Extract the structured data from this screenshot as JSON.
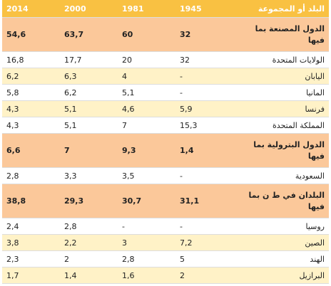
{
  "header": {
    "name": "البلد أو المجموعة",
    "y1945": "1945",
    "y1981": "1981",
    "y2000": "2000",
    "y2014": "2014"
  },
  "rows": [
    {
      "type": "group",
      "name": "الدول المصنعة بما فيها",
      "v1945": "32",
      "v1981": "60",
      "v2000": "63,7",
      "v2014": "54,6"
    },
    {
      "type": "plain",
      "name": "الولايات المتحدة",
      "v1945": "32",
      "v1981": "20",
      "v2000": "17,7",
      "v2014": "16,8"
    },
    {
      "type": "alt",
      "name": "اليابان",
      "v1945": "-",
      "v1981": "4",
      "v2000": "6,3",
      "v2014": "6,2"
    },
    {
      "type": "plain",
      "name": "المانيا",
      "v1945": "-",
      "v1981": "5,1",
      "v2000": "6,2",
      "v2014": "5,8"
    },
    {
      "type": "alt",
      "name": "فرنسا",
      "v1945": "5,9",
      "v1981": "4,6",
      "v2000": "5,1",
      "v2014": "4,3"
    },
    {
      "type": "plain",
      "name": "المملكة المتحدة",
      "v1945": "15,3",
      "v1981": "7",
      "v2000": "5,1",
      "v2014": "4,3"
    },
    {
      "type": "group",
      "name": "الدول البترولية بما فيها",
      "v1945": "1,4",
      "v1981": "9,3",
      "v2000": "7",
      "v2014": "6,6"
    },
    {
      "type": "plain",
      "name": "السعودية",
      "v1945": "-",
      "v1981": "3,5",
      "v2000": "3,3",
      "v2014": "2,8"
    },
    {
      "type": "group",
      "name": "البلدان في ط ن بما فيها",
      "v1945": "31,1",
      "v1981": "30,7",
      "v2000": "29,3",
      "v2014": "38,8"
    },
    {
      "type": "plain",
      "name": "روسيا",
      "v1945": "-",
      "v1981": "-",
      "v2000": "2,8",
      "v2014": "2,4"
    },
    {
      "type": "alt",
      "name": "الصين",
      "v1945": "7,2",
      "v1981": "3",
      "v2000": "2,2",
      "v2014": "3,8"
    },
    {
      "type": "plain",
      "name": "الهند",
      "v1945": "5",
      "v1981": "2,8",
      "v2000": "2",
      "v2014": "2,3"
    },
    {
      "type": "alt",
      "name": "البرازيل",
      "v1945": "2",
      "v1981": "1,6",
      "v2000": "1,4",
      "v2014": "1,7"
    }
  ]
}
